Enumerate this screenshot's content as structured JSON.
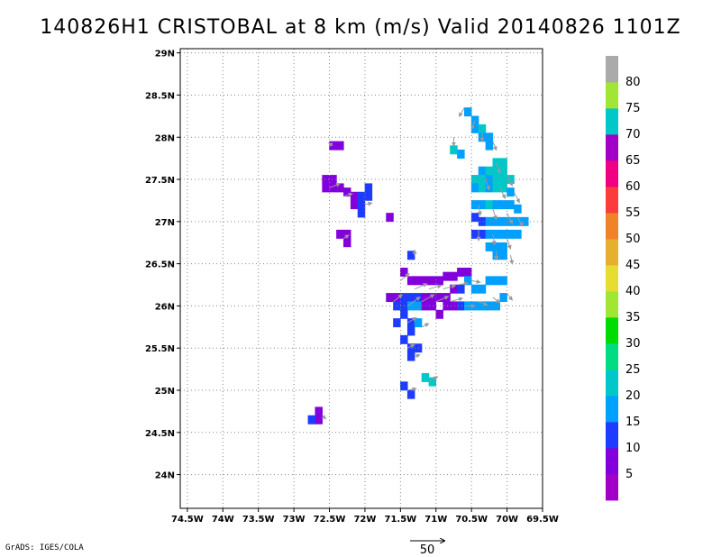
{
  "title": "140826H1 CRISTOBAL at 8 km (m/s) Valid 20140826 1101Z",
  "credit": "GrADS: IGES/COLA",
  "chart_data": {
    "type": "heatmap",
    "title": "140826H1 CRISTOBAL at 8 km (m/s) Valid 20140826 1101Z",
    "xlabel": "",
    "ylabel": "",
    "x_ticks": [
      "74.5W",
      "74W",
      "73.5W",
      "73W",
      "72.5W",
      "72W",
      "71.5W",
      "71W",
      "70.5W",
      "70W",
      "69.5W"
    ],
    "x_tick_values": [
      -74.5,
      -74,
      -73.5,
      -73,
      -72.5,
      -72,
      -71.5,
      -71,
      -70.5,
      -70,
      -69.5
    ],
    "y_ticks": [
      "24N",
      "24.5N",
      "25N",
      "25.5N",
      "26N",
      "26.5N",
      "27N",
      "27.5N",
      "28N",
      "28.5N",
      "29N"
    ],
    "y_tick_values": [
      24,
      24.5,
      25,
      25.5,
      26,
      26.5,
      27,
      27.5,
      28,
      28.5,
      29
    ],
    "xlim": [
      -74.6,
      -69.5
    ],
    "ylim": [
      23.6,
      29.05
    ],
    "grid": true,
    "colorbar": {
      "labels": [
        "5",
        "10",
        "15",
        "20",
        "25",
        "30",
        "35",
        "40",
        "45",
        "50",
        "55",
        "60",
        "65",
        "70",
        "75",
        "80"
      ],
      "bounds": [
        0,
        5,
        10,
        15,
        20,
        25,
        30,
        35,
        40,
        45,
        50,
        55,
        60,
        65,
        70,
        75,
        80,
        85
      ],
      "colors": [
        "#a000c8",
        "#8200dc",
        "#1e3cff",
        "#00a0ff",
        "#00c8c8",
        "#00dc82",
        "#00dc00",
        "#a0e632",
        "#e6dc32",
        "#e6af2d",
        "#f08228",
        "#fa3c3c",
        "#f00082",
        "#a000c8",
        "#00c8c8",
        "#a0e632",
        "#aaaaaa"
      ]
    },
    "reference_vector": {
      "label": "50",
      "value": 50
    },
    "cells": [
      [
        -72.45,
        27.9,
        7
      ],
      [
        -72.35,
        27.9,
        7
      ],
      [
        -72.55,
        27.5,
        7
      ],
      [
        -72.55,
        27.4,
        7
      ],
      [
        -72.45,
        27.5,
        7
      ],
      [
        -72.45,
        27.4,
        7
      ],
      [
        -72.35,
        27.4,
        7
      ],
      [
        -72.25,
        27.35,
        8
      ],
      [
        -72.15,
        27.3,
        7
      ],
      [
        -72.15,
        27.2,
        8
      ],
      [
        -72.05,
        27.3,
        11
      ],
      [
        -72.05,
        27.2,
        11
      ],
      [
        -72.05,
        27.1,
        11
      ],
      [
        -71.95,
        27.3,
        12
      ],
      [
        -71.95,
        27.4,
        12
      ],
      [
        -72.35,
        26.85,
        7
      ],
      [
        -72.25,
        26.85,
        7
      ],
      [
        -72.25,
        26.75,
        7
      ],
      [
        -71.65,
        27.05,
        7
      ],
      [
        -71.35,
        26.6,
        12
      ],
      [
        -71.45,
        26.4,
        7
      ],
      [
        -71.35,
        26.3,
        8
      ],
      [
        -71.25,
        26.3,
        8
      ],
      [
        -71.15,
        26.3,
        8
      ],
      [
        -71.05,
        26.3,
        8
      ],
      [
        -70.95,
        26.3,
        8
      ],
      [
        -70.85,
        26.35,
        8
      ],
      [
        -70.75,
        26.35,
        8
      ],
      [
        -70.65,
        26.4,
        8
      ],
      [
        -70.55,
        26.4,
        8
      ],
      [
        -71.65,
        26.1,
        7
      ],
      [
        -71.55,
        26.1,
        8
      ],
      [
        -71.55,
        26.0,
        11
      ],
      [
        -71.45,
        26.1,
        11
      ],
      [
        -71.45,
        26.0,
        12
      ],
      [
        -71.35,
        26.1,
        12
      ],
      [
        -71.35,
        26.0,
        18
      ],
      [
        -71.25,
        26.1,
        12
      ],
      [
        -71.25,
        26.0,
        18
      ],
      [
        -71.15,
        26.1,
        8
      ],
      [
        -71.15,
        26.0,
        8
      ],
      [
        -71.05,
        26.1,
        8
      ],
      [
        -71.05,
        26.0,
        8
      ],
      [
        -70.95,
        26.1,
        8
      ],
      [
        -70.95,
        25.9,
        8
      ],
      [
        -70.85,
        26.1,
        8
      ],
      [
        -70.85,
        26.0,
        8
      ],
      [
        -70.75,
        26.2,
        8
      ],
      [
        -70.75,
        26.0,
        8
      ],
      [
        -70.65,
        26.2,
        11
      ],
      [
        -70.65,
        26.0,
        12
      ],
      [
        -70.55,
        26.3,
        16
      ],
      [
        -70.55,
        26.0,
        16
      ],
      [
        -70.45,
        26.2,
        16
      ],
      [
        -70.45,
        26.0,
        16
      ],
      [
        -70.35,
        26.2,
        16
      ],
      [
        -70.35,
        26.0,
        16
      ],
      [
        -70.25,
        26.3,
        16
      ],
      [
        -70.25,
        26.0,
        16
      ],
      [
        -70.15,
        26.3,
        16
      ],
      [
        -70.15,
        26.0,
        16
      ],
      [
        -70.05,
        26.3,
        16
      ],
      [
        -70.05,
        26.1,
        16
      ],
      [
        -71.45,
        25.9,
        11
      ],
      [
        -71.35,
        25.8,
        12
      ],
      [
        -71.35,
        25.7,
        12
      ],
      [
        -71.25,
        25.8,
        18
      ],
      [
        -71.55,
        25.8,
        11
      ],
      [
        -71.45,
        25.6,
        11
      ],
      [
        -71.35,
        25.5,
        12
      ],
      [
        -71.35,
        25.4,
        12
      ],
      [
        -71.25,
        25.5,
        12
      ],
      [
        -71.45,
        25.05,
        12
      ],
      [
        -71.35,
        24.95,
        12
      ],
      [
        -71.15,
        25.15,
        20
      ],
      [
        -71.05,
        25.1,
        20
      ],
      [
        -72.65,
        24.75,
        7
      ],
      [
        -72.65,
        24.65,
        8
      ],
      [
        -72.75,
        24.65,
        12
      ],
      [
        -70.55,
        28.3,
        16
      ],
      [
        -70.45,
        28.2,
        16
      ],
      [
        -70.45,
        28.1,
        16
      ],
      [
        -70.35,
        28.1,
        20
      ],
      [
        -70.35,
        28.0,
        18
      ],
      [
        -70.25,
        28.0,
        16
      ],
      [
        -70.25,
        27.9,
        18
      ],
      [
        -70.75,
        27.85,
        20
      ],
      [
        -70.65,
        27.8,
        16
      ],
      [
        -70.15,
        27.7,
        20
      ],
      [
        -70.05,
        27.7,
        20
      ],
      [
        -70.35,
        27.6,
        18
      ],
      [
        -70.25,
        27.6,
        20
      ],
      [
        -70.15,
        27.6,
        20
      ],
      [
        -70.05,
        27.6,
        20
      ],
      [
        -70.45,
        27.5,
        20
      ],
      [
        -70.35,
        27.5,
        20
      ],
      [
        -70.25,
        27.5,
        18
      ],
      [
        -70.15,
        27.5,
        20
      ],
      [
        -70.05,
        27.5,
        20
      ],
      [
        -69.95,
        27.5,
        20
      ],
      [
        -70.45,
        27.4,
        18
      ],
      [
        -70.35,
        27.4,
        20
      ],
      [
        -70.25,
        27.4,
        18
      ],
      [
        -70.15,
        27.4,
        20
      ],
      [
        -70.05,
        27.4,
        20
      ],
      [
        -69.95,
        27.35,
        18
      ],
      [
        -70.45,
        27.2,
        16
      ],
      [
        -70.35,
        27.2,
        18
      ],
      [
        -70.25,
        27.2,
        20
      ],
      [
        -70.15,
        27.2,
        18
      ],
      [
        -70.05,
        27.2,
        18
      ],
      [
        -69.95,
        27.2,
        18
      ],
      [
        -69.85,
        27.15,
        16
      ],
      [
        -70.45,
        27.05,
        11
      ],
      [
        -70.35,
        27.0,
        11
      ],
      [
        -70.25,
        27.0,
        18
      ],
      [
        -70.15,
        27.0,
        18
      ],
      [
        -70.05,
        27.0,
        18
      ],
      [
        -69.95,
        27.0,
        16
      ],
      [
        -69.85,
        27.0,
        16
      ],
      [
        -69.75,
        27.0,
        16
      ],
      [
        -70.45,
        26.85,
        12
      ],
      [
        -70.35,
        26.85,
        12
      ],
      [
        -70.25,
        26.85,
        18
      ],
      [
        -70.15,
        26.85,
        18
      ],
      [
        -70.05,
        26.85,
        16
      ],
      [
        -69.95,
        26.85,
        16
      ],
      [
        -69.85,
        26.85,
        16
      ],
      [
        -70.25,
        26.7,
        16
      ],
      [
        -70.15,
        26.7,
        16
      ],
      [
        -70.05,
        26.7,
        16
      ],
      [
        -70.15,
        26.6,
        16
      ],
      [
        -70.05,
        26.6,
        16
      ]
    ],
    "vectors": [
      [
        -72.45,
        27.9,
        -5,
        3
      ],
      [
        -72.5,
        27.4,
        12,
        5
      ],
      [
        -72.3,
        27.3,
        10,
        3
      ],
      [
        -72.0,
        27.2,
        8,
        2
      ],
      [
        -72.3,
        26.8,
        6,
        4
      ],
      [
        -71.3,
        26.6,
        0,
        6
      ],
      [
        -71.5,
        26.3,
        10,
        8
      ],
      [
        -71.3,
        26.2,
        14,
        6
      ],
      [
        -71.1,
        26.2,
        14,
        4
      ],
      [
        -70.9,
        26.2,
        14,
        4
      ],
      [
        -70.7,
        26.25,
        12,
        2
      ],
      [
        -70.5,
        26.3,
        10,
        -2
      ],
      [
        -71.6,
        26.05,
        10,
        8
      ],
      [
        -71.4,
        26.0,
        14,
        10
      ],
      [
        -71.2,
        26.05,
        14,
        8
      ],
      [
        -71.0,
        26.05,
        14,
        6
      ],
      [
        -70.8,
        26.05,
        14,
        4
      ],
      [
        -70.6,
        26.0,
        12,
        0
      ],
      [
        -70.4,
        26.05,
        10,
        -4
      ],
      [
        -70.2,
        26.1,
        8,
        -6
      ],
      [
        -70.0,
        26.15,
        6,
        -8
      ],
      [
        -71.4,
        25.8,
        10,
        6
      ],
      [
        -71.2,
        25.75,
        8,
        4
      ],
      [
        -71.4,
        25.5,
        8,
        4
      ],
      [
        -71.3,
        25.4,
        6,
        2
      ],
      [
        -71.4,
        25.0,
        10,
        2
      ],
      [
        -71.1,
        25.1,
        10,
        6
      ],
      [
        -72.6,
        24.7,
        4,
        -4
      ],
      [
        -70.6,
        28.35,
        -6,
        -10
      ],
      [
        -70.45,
        28.2,
        -4,
        -10
      ],
      [
        -70.35,
        28.05,
        0,
        -10
      ],
      [
        -70.2,
        27.95,
        4,
        -10
      ],
      [
        -70.75,
        28.0,
        0,
        -10
      ],
      [
        -70.15,
        27.7,
        4,
        -12
      ],
      [
        -70.0,
        27.55,
        6,
        -12
      ],
      [
        -70.3,
        27.5,
        4,
        -12
      ],
      [
        -70.1,
        27.4,
        6,
        -12
      ],
      [
        -69.9,
        27.35,
        6,
        -12
      ],
      [
        -70.4,
        27.2,
        2,
        -12
      ],
      [
        -70.2,
        27.15,
        4,
        -12
      ],
      [
        -70.0,
        27.1,
        6,
        -12
      ],
      [
        -69.85,
        27.05,
        6,
        -10
      ],
      [
        -70.4,
        26.9,
        0,
        -12
      ],
      [
        -70.2,
        26.85,
        2,
        -12
      ],
      [
        -70.0,
        26.8,
        4,
        -12
      ],
      [
        -70.15,
        26.65,
        0,
        -10
      ],
      [
        -69.95,
        26.6,
        2,
        -10
      ]
    ]
  }
}
